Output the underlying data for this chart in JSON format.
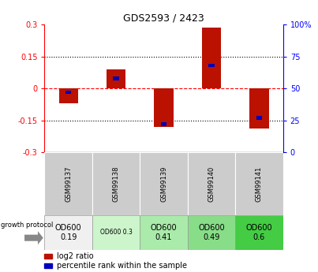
{
  "title": "GDS2593 / 2423",
  "samples": [
    "GSM99137",
    "GSM99138",
    "GSM99139",
    "GSM99140",
    "GSM99141"
  ],
  "log2_ratios": [
    -0.07,
    0.09,
    -0.18,
    0.285,
    -0.19
  ],
  "percentile_ranks": [
    47,
    58,
    22,
    68,
    27
  ],
  "protocol_labels": [
    "OD600\n0.19",
    "OD600 0.3",
    "OD600\n0.41",
    "OD600\n0.49",
    "OD600\n0.6"
  ],
  "protocol_colors": [
    "#f0f0f0",
    "#ccf5cc",
    "#aaeaaa",
    "#88dd88",
    "#44cc44"
  ],
  "protocol_fontsize": [
    7,
    5.5,
    7,
    7,
    7
  ],
  "bar_color": "#bb1100",
  "percentile_color": "#0000bb",
  "ylim": [
    -0.3,
    0.3
  ],
  "yticks_left": [
    -0.3,
    -0.15,
    0,
    0.15,
    0.3
  ],
  "yticks_right": [
    0,
    25,
    50,
    75,
    100
  ],
  "bar_width": 0.4,
  "percentile_bar_width": 0.12
}
